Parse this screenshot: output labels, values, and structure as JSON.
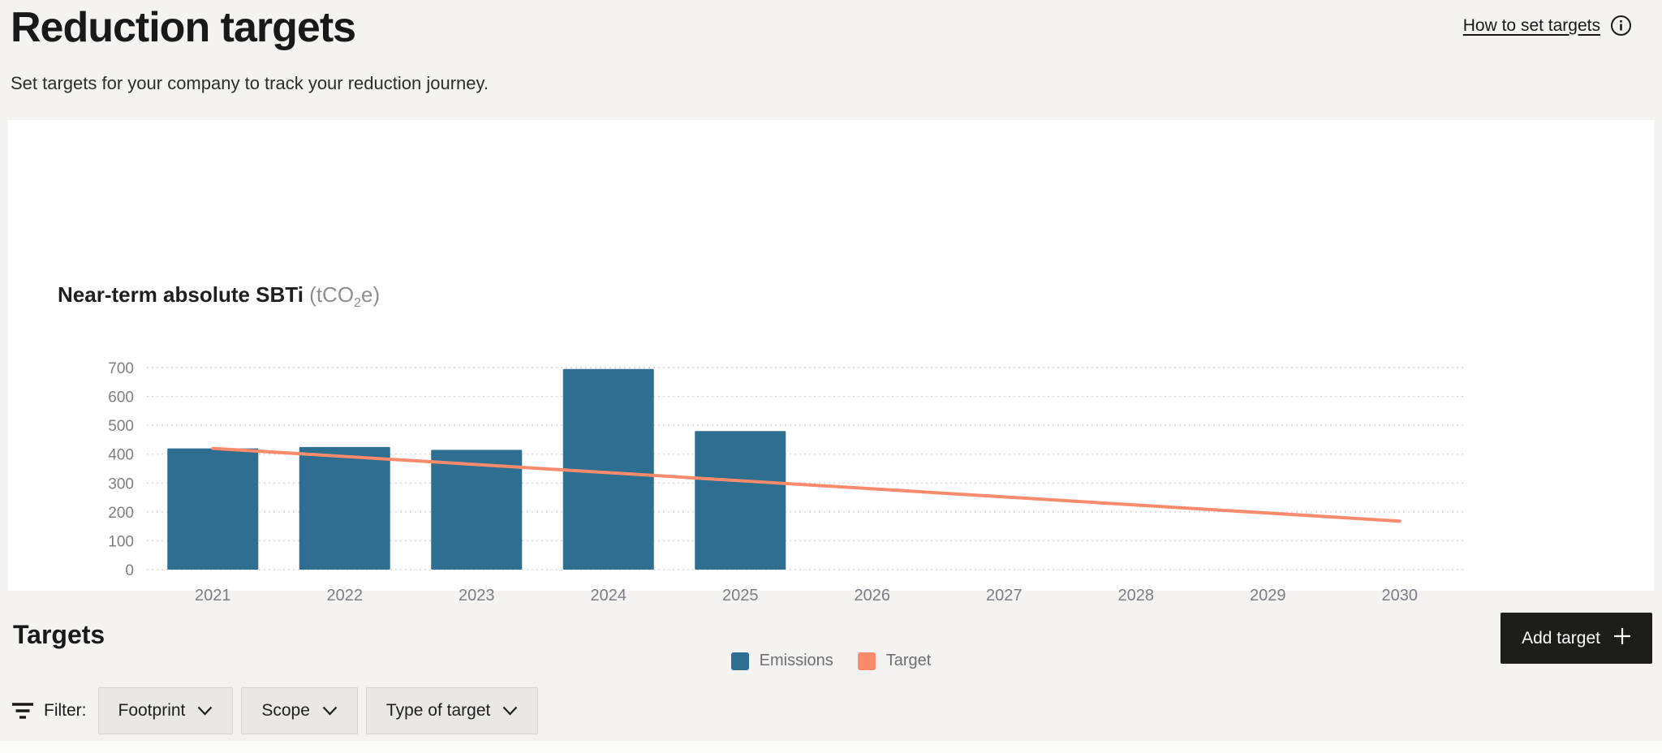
{
  "page": {
    "title": "Reduction targets",
    "subtitle": "Set targets for your company to track your reduction journey.",
    "help_link_label": "How to set targets"
  },
  "chart_card": {
    "title": "Near-term absolute SBTi",
    "unit_prefix": " (tCO",
    "unit_sub": "2",
    "unit_suffix": "e)"
  },
  "chart_data": {
    "type": "bar",
    "title": "Near-term absolute SBTi (tCO2e)",
    "categories": [
      "2021",
      "2022",
      "2023",
      "2024",
      "2025",
      "2026",
      "2027",
      "2028",
      "2029",
      "2030"
    ],
    "series": [
      {
        "name": "Emissions",
        "type": "bar",
        "color": "#2e6e91",
        "values": [
          420,
          425,
          415,
          695,
          480,
          null,
          null,
          null,
          null,
          null
        ]
      },
      {
        "name": "Target",
        "type": "line",
        "color": "#f98a6b",
        "values": [
          420,
          392,
          364,
          336,
          308,
          280,
          252,
          224,
          196,
          168
        ]
      }
    ],
    "ylim": [
      0,
      700
    ],
    "yticks": [
      0,
      100,
      200,
      300,
      400,
      500,
      600,
      700
    ],
    "grid": "dotted-horizontal",
    "legend_position": "bottom-center"
  },
  "targets_section": {
    "heading": "Targets",
    "add_button_label": "Add target",
    "filter_label": "Filter:",
    "filters": [
      {
        "label": "Footprint"
      },
      {
        "label": "Scope"
      },
      {
        "label": "Type of target"
      }
    ]
  },
  "colors": {
    "page_bg": "#f4f3f1",
    "card_bg": "#ffffff",
    "bar": "#2e6e91",
    "target_line": "#f98a6b",
    "axis_text": "#7d7d85",
    "grid": "#d2d2d8",
    "dark_button": "#1d1d1b"
  }
}
